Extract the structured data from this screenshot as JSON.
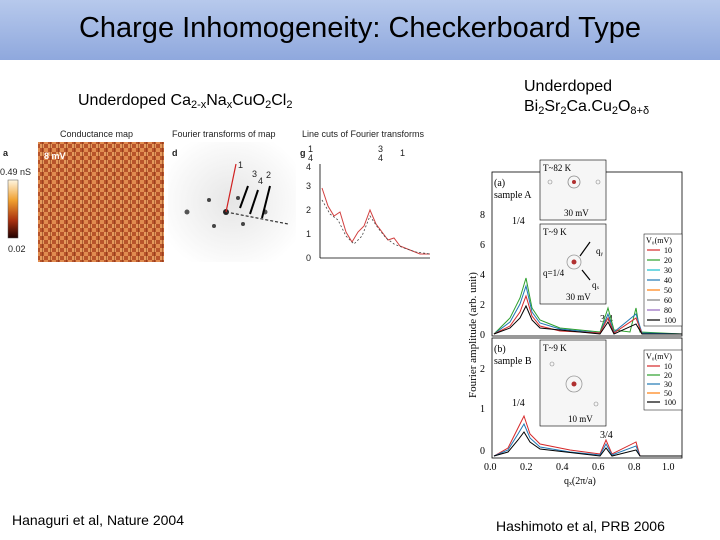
{
  "slide": {
    "title": "Charge Inhomogeneity: Checkerboard Type"
  },
  "left": {
    "heading": {
      "prefix": "Underdoped Ca",
      "sub1": "2-x",
      "mid1": "Na",
      "sub2": "x",
      "mid2": "CuO",
      "sub3": "2",
      "mid3": "Cl",
      "sub4": "2"
    },
    "citation": "Hanaguri et al, Nature 2004",
    "figure": {
      "panel_a": {
        "letter": "a",
        "title": "Conductance map",
        "energy": "8 mV",
        "scale_top": "0.49 nS",
        "scale_bottom": "0.02"
      },
      "panel_d": {
        "letter": "d",
        "title": "Fourier transforms of map",
        "markers": [
          "1",
          "2",
          "3",
          "4"
        ]
      },
      "panel_g": {
        "letter": "g",
        "title": "Line cuts of Fourier transforms",
        "top_labels": [
          "1",
          "4",
          "3",
          "4",
          "1"
        ],
        "y_ticks": [
          "0",
          "1",
          "2",
          "3",
          "4"
        ]
      }
    }
  },
  "right": {
    "heading_line1": "Underdoped",
    "heading_line2": {
      "p1": "Bi",
      "s1": "2",
      "p2": "Sr",
      "s2": "2",
      "p3": "Ca.Cu",
      "s3": "2",
      "p4": "O",
      "s4": "8+δ"
    },
    "citation": "Hashimoto et al, PRB 2006",
    "figure": {
      "y_axis_label": "Fourier amplitude (arb. unit)",
      "x_axis_label": "qₓ(2π/a)",
      "x_ticks": [
        "0.0",
        "0.2",
        "0.4",
        "0.6",
        "0.8",
        "1.0"
      ],
      "panel_a": {
        "label": "(a)",
        "sample": "sample A",
        "y_ticks": [
          "0",
          "2",
          "4",
          "6",
          "8"
        ],
        "quarter": "1/4",
        "three_quarter": "3/4",
        "inset_top": {
          "temp": "T~82 K",
          "energy": "30 mV"
        },
        "inset_bottom": {
          "temp": "T~9 K",
          "energy": "30 mV",
          "qy": "qᵧ",
          "qx": "qₓ",
          "q": "q=1/4"
        },
        "legend_title": "V₀(mV)",
        "legend_items": [
          {
            "label": "10",
            "color": "#d62728"
          },
          {
            "label": "20",
            "color": "#2ca02c"
          },
          {
            "label": "30",
            "color": "#17becf"
          },
          {
            "label": "40",
            "color": "#1f77b4"
          },
          {
            "label": "50",
            "color": "#ff7f0e"
          },
          {
            "label": "60",
            "color": "#7f7f7f"
          },
          {
            "label": "80",
            "color": "#9467bd"
          },
          {
            "label": "100",
            "color": "#000000"
          }
        ]
      },
      "panel_b": {
        "label": "(b)",
        "sample": "sample B",
        "y_ticks": [
          "0",
          "1",
          "2"
        ],
        "quarter": "1/4",
        "three_quarter": "3/4",
        "inset": {
          "temp": "T~9 K",
          "energy": "10 mV"
        },
        "legend_title": "V₀(mV)",
        "legend_items": [
          {
            "label": "10",
            "color": "#d62728"
          },
          {
            "label": "20",
            "color": "#2ca02c"
          },
          {
            "label": "30",
            "color": "#1f77b4"
          },
          {
            "label": "50",
            "color": "#ff7f0e"
          },
          {
            "label": "100",
            "color": "#000000"
          }
        ]
      }
    }
  }
}
